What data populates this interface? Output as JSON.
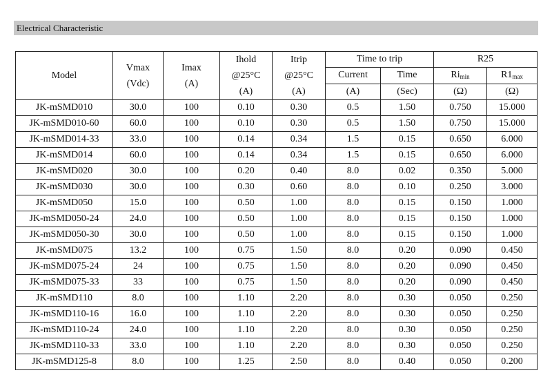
{
  "header": {
    "title": "Electrical Characteristic"
  },
  "table": {
    "head": {
      "model": "Model",
      "vmax": [
        "Vmax",
        "(Vdc)"
      ],
      "imax": [
        "Imax",
        "(A)"
      ],
      "ihold": [
        "Ihold",
        "@25°C",
        "(A)"
      ],
      "itrip": [
        "Itrip",
        "@25°C",
        "(A)"
      ],
      "time_to_trip": "Time to trip",
      "current": [
        "Current",
        "(A)"
      ],
      "time": [
        "Time",
        "(Sec)"
      ],
      "r25": "R25",
      "ri": {
        "main": "Ri",
        "sub": "min",
        "unit": "(Ω)"
      },
      "r1": {
        "main": "R1",
        "sub": "max",
        "unit": "(Ω)"
      }
    },
    "rows": [
      [
        "JK-mSMD010",
        "30.0",
        "100",
        "0.10",
        "0.30",
        "0.5",
        "1.50",
        "0.750",
        "15.000"
      ],
      [
        "JK-mSMD010-60",
        "60.0",
        "100",
        "0.10",
        "0.30",
        "0.5",
        "1.50",
        "0.750",
        "15.000"
      ],
      [
        "JK-mSMD014-33",
        "33.0",
        "100",
        "0.14",
        "0.34",
        "1.5",
        "0.15",
        "0.650",
        "6.000"
      ],
      [
        "JK-mSMD014",
        "60.0",
        "100",
        "0.14",
        "0.34",
        "1.5",
        "0.15",
        "0.650",
        "6.000"
      ],
      [
        "JK-mSMD020",
        "30.0",
        "100",
        "0.20",
        "0.40",
        "8.0",
        "0.02",
        "0.350",
        "5.000"
      ],
      [
        "JK-mSMD030",
        "30.0",
        "100",
        "0.30",
        "0.60",
        "8.0",
        "0.10",
        "0.250",
        "3.000"
      ],
      [
        "JK-mSMD050",
        "15.0",
        "100",
        "0.50",
        "1.00",
        "8.0",
        "0.15",
        "0.150",
        "1.000"
      ],
      [
        "JK-mSMD050-24",
        "24.0",
        "100",
        "0.50",
        "1.00",
        "8.0",
        "0.15",
        "0.150",
        "1.000"
      ],
      [
        "JK-mSMD050-30",
        "30.0",
        "100",
        "0.50",
        "1.00",
        "8.0",
        "0.15",
        "0.150",
        "1.000"
      ],
      [
        "JK-mSMD075",
        "13.2",
        "100",
        "0.75",
        "1.50",
        "8.0",
        "0.20",
        "0.090",
        "0.450"
      ],
      [
        "JK-mSMD075-24",
        "24",
        "100",
        "0.75",
        "1.50",
        "8.0",
        "0.20",
        "0.090",
        "0.450"
      ],
      [
        "JK-mSMD075-33",
        "33",
        "100",
        "0.75",
        "1.50",
        "8.0",
        "0.20",
        "0.090",
        "0.450"
      ],
      [
        "JK-mSMD110",
        "8.0",
        "100",
        "1.10",
        "2.20",
        "8.0",
        "0.30",
        "0.050",
        "0.250"
      ],
      [
        "JK-mSMD110-16",
        "16.0",
        "100",
        "1.10",
        "2.20",
        "8.0",
        "0.30",
        "0.050",
        "0.250"
      ],
      [
        "JK-mSMD110-24",
        "24.0",
        "100",
        "1.10",
        "2.20",
        "8.0",
        "0.30",
        "0.050",
        "0.250"
      ],
      [
        "JK-mSMD110-33",
        "33.0",
        "100",
        "1.10",
        "2.20",
        "8.0",
        "0.30",
        "0.050",
        "0.250"
      ],
      [
        "JK-mSMD125-8",
        "8.0",
        "100",
        "1.25",
        "2.50",
        "8.0",
        "0.40",
        "0.050",
        "0.200"
      ]
    ]
  }
}
